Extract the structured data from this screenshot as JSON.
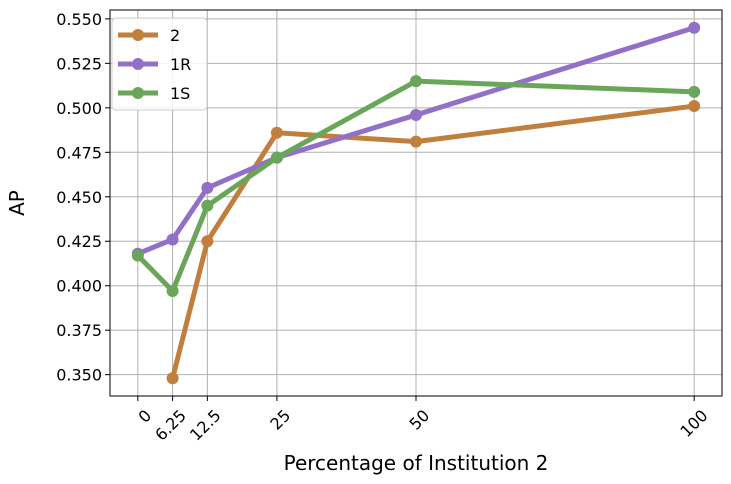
{
  "chart_data": {
    "type": "line",
    "title": "",
    "xlabel": "Percentage of Institution 2",
    "ylabel": "AP",
    "x": [
      0,
      6.25,
      12.5,
      25,
      50,
      100
    ],
    "x_tick_labels": [
      "0",
      "6.25",
      "12.5",
      "25",
      "50",
      "100"
    ],
    "y_ticks": [
      0.35,
      0.375,
      0.4,
      0.425,
      0.45,
      0.475,
      0.5,
      0.525,
      0.55
    ],
    "y_tick_labels": [
      "0.350",
      "0.375",
      "0.400",
      "0.425",
      "0.450",
      "0.475",
      "0.500",
      "0.525",
      "0.550"
    ],
    "xlim": [
      -5,
      105
    ],
    "ylim": [
      0.338,
      0.555
    ],
    "grid": true,
    "legend_position": "top-left",
    "series": [
      {
        "name": "2",
        "color": "#c17f3e",
        "points": [
          [
            6.25,
            0.348
          ],
          [
            12.5,
            0.425
          ],
          [
            25,
            0.486
          ],
          [
            50,
            0.481
          ],
          [
            100,
            0.501
          ]
        ]
      },
      {
        "name": "1R",
        "color": "#9370c8",
        "points": [
          [
            0,
            0.418
          ],
          [
            6.25,
            0.426
          ],
          [
            12.5,
            0.455
          ],
          [
            25,
            0.472
          ],
          [
            50,
            0.496
          ],
          [
            100,
            0.545
          ]
        ]
      },
      {
        "name": "1S",
        "color": "#6aa65a",
        "points": [
          [
            0,
            0.417
          ],
          [
            6.25,
            0.397
          ],
          [
            12.5,
            0.445
          ],
          [
            25,
            0.472
          ],
          [
            50,
            0.515
          ],
          [
            100,
            0.509
          ]
        ]
      }
    ]
  }
}
